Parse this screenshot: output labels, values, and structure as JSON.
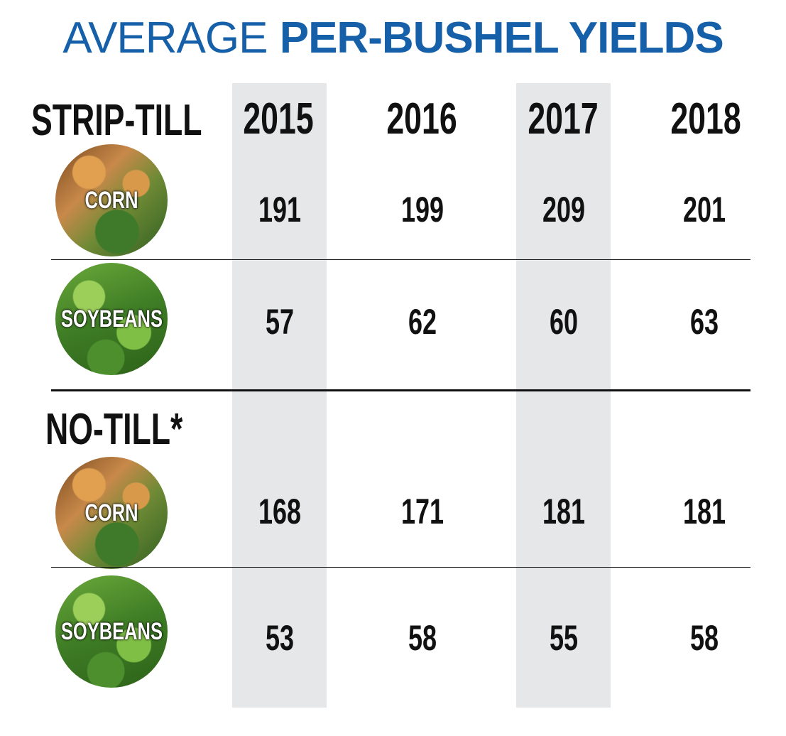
{
  "title": {
    "light": "AVERAGE",
    "bold": "PER-BUSHEL YIELDS"
  },
  "colors": {
    "title": "#1560a8",
    "band": "#e6e7e9",
    "text": "#111111"
  },
  "chart_data": {
    "type": "table",
    "columns": [
      "2015",
      "2016",
      "2017",
      "2018"
    ],
    "sections": [
      {
        "label": "STRIP-TILL",
        "rows": [
          {
            "crop": "CORN",
            "values": [
              "191",
              "199",
              "209",
              "201"
            ]
          },
          {
            "crop": "SOYBEANS",
            "values": [
              "57",
              "62",
              "60",
              "63"
            ]
          }
        ]
      },
      {
        "label": "NO-TILL*",
        "rows": [
          {
            "crop": "CORN",
            "values": [
              "168",
              "171",
              "181",
              "181"
            ]
          },
          {
            "crop": "SOYBEANS",
            "values": [
              "53",
              "58",
              "55",
              "58"
            ]
          }
        ]
      }
    ]
  }
}
